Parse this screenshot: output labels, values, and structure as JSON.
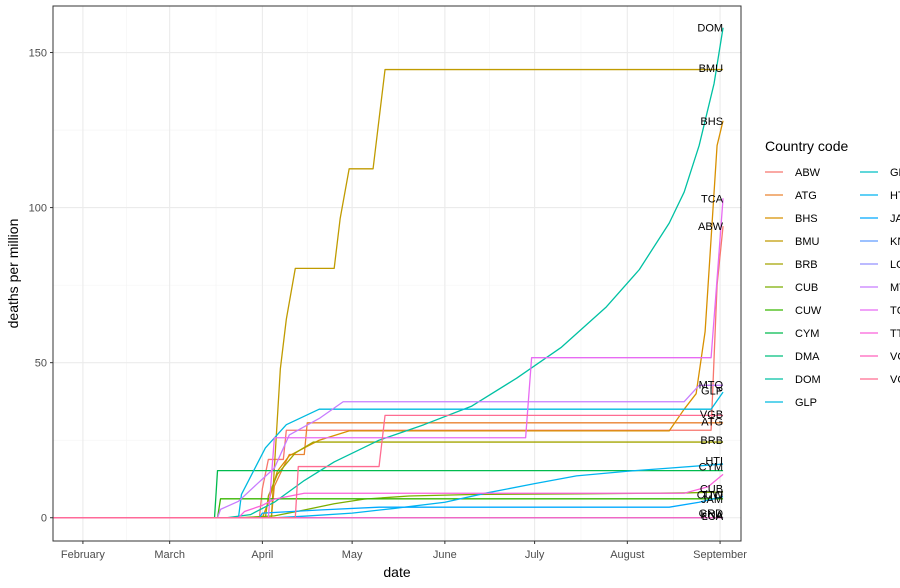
{
  "chart_data": {
    "type": "line",
    "title": "",
    "xlabel": "date",
    "ylabel": "deaths per million",
    "x_ticks": [
      {
        "label": "February",
        "date": "2020-02-01"
      },
      {
        "label": "March",
        "date": "2020-03-01"
      },
      {
        "label": "April",
        "date": "2020-04-01"
      },
      {
        "label": "May",
        "date": "2020-05-01"
      },
      {
        "label": "June",
        "date": "2020-06-01"
      },
      {
        "label": "July",
        "date": "2020-07-01"
      },
      {
        "label": "August",
        "date": "2020-08-01"
      },
      {
        "label": "September",
        "date": "2020-09-01"
      }
    ],
    "xlim": [
      "2020-01-22",
      "2020-09-08"
    ],
    "y_ticks": [
      0,
      50,
      100,
      150
    ],
    "ylim": [
      -7.5,
      165
    ],
    "grid": true,
    "legend": {
      "title": "Country code",
      "position": "right",
      "columns": 2
    },
    "series": [
      {
        "name": "ABW",
        "color": "#F8766D",
        "label": "ABW",
        "points": [
          [
            "2020-01-22",
            0
          ],
          [
            "2020-03-31",
            0
          ],
          [
            "2020-04-01",
            9.4
          ],
          [
            "2020-04-03",
            18.8
          ],
          [
            "2020-04-08",
            18.8
          ],
          [
            "2020-04-09",
            28.2
          ],
          [
            "2020-08-29",
            28.2
          ],
          [
            "2020-08-31",
            75
          ],
          [
            "2020-09-02",
            94
          ]
        ]
      },
      {
        "name": "ATG",
        "color": "#EA8331",
        "label": "ATG",
        "points": [
          [
            "2020-01-22",
            0
          ],
          [
            "2020-04-04",
            0
          ],
          [
            "2020-04-05",
            10.2
          ],
          [
            "2020-04-10",
            20.4
          ],
          [
            "2020-04-15",
            20.4
          ],
          [
            "2020-04-16",
            30.6
          ],
          [
            "2020-09-02",
            30.6
          ]
        ]
      },
      {
        "name": "BHS",
        "color": "#D89000",
        "label": "BHS",
        "points": [
          [
            "2020-01-22",
            0
          ],
          [
            "2020-04-01",
            0
          ],
          [
            "2020-04-03",
            5
          ],
          [
            "2020-04-06",
            15
          ],
          [
            "2020-04-10",
            20
          ],
          [
            "2020-04-20",
            25
          ],
          [
            "2020-04-30",
            28
          ],
          [
            "2020-08-15",
            28
          ],
          [
            "2020-08-20",
            35
          ],
          [
            "2020-08-24",
            40
          ],
          [
            "2020-08-27",
            60
          ],
          [
            "2020-08-29",
            90
          ],
          [
            "2020-08-31",
            120
          ],
          [
            "2020-09-02",
            128
          ]
        ]
      },
      {
        "name": "BMU",
        "color": "#C09B00",
        "label": "BMU",
        "points": [
          [
            "2020-01-22",
            0
          ],
          [
            "2020-04-04",
            0
          ],
          [
            "2020-04-05",
            16
          ],
          [
            "2020-04-06",
            32
          ],
          [
            "2020-04-07",
            48
          ],
          [
            "2020-04-09",
            64
          ],
          [
            "2020-04-12",
            80.4
          ],
          [
            "2020-04-25",
            80.4
          ],
          [
            "2020-04-27",
            96.5
          ],
          [
            "2020-04-30",
            112.5
          ],
          [
            "2020-05-08",
            112.5
          ],
          [
            "2020-05-10",
            128.5
          ],
          [
            "2020-05-12",
            144.5
          ],
          [
            "2020-09-02",
            144.5
          ]
        ]
      },
      {
        "name": "BRB",
        "color": "#A3A500",
        "label": "BRB",
        "points": [
          [
            "2020-01-22",
            0
          ],
          [
            "2020-04-02",
            0
          ],
          [
            "2020-04-03",
            7
          ],
          [
            "2020-04-06",
            14
          ],
          [
            "2020-04-12",
            20.9
          ],
          [
            "2020-04-18",
            24.4
          ],
          [
            "2020-09-02",
            24.4
          ]
        ]
      },
      {
        "name": "CUB",
        "color": "#7CAE00",
        "label": "CUB",
        "points": [
          [
            "2020-01-22",
            0
          ],
          [
            "2020-03-24",
            0
          ],
          [
            "2020-04-05",
            0.6
          ],
          [
            "2020-04-15",
            2.5
          ],
          [
            "2020-04-25",
            4.5
          ],
          [
            "2020-05-05",
            6
          ],
          [
            "2020-05-20",
            7
          ],
          [
            "2020-06-10",
            7.5
          ],
          [
            "2020-07-15",
            7.7
          ],
          [
            "2020-08-20",
            8
          ],
          [
            "2020-09-02",
            8.3
          ]
        ]
      },
      {
        "name": "CUW",
        "color": "#39B600",
        "label": "CUW",
        "points": [
          [
            "2020-01-22",
            0
          ],
          [
            "2020-03-17",
            0
          ],
          [
            "2020-03-18",
            6.1
          ],
          [
            "2020-09-02",
            6.1
          ]
        ]
      },
      {
        "name": "CYM",
        "color": "#00BB4E",
        "label": "CYM",
        "points": [
          [
            "2020-01-22",
            0
          ],
          [
            "2020-03-16",
            0
          ],
          [
            "2020-03-17",
            15.2
          ],
          [
            "2020-09-02",
            15.2
          ]
        ]
      },
      {
        "name": "DMA",
        "color": "#00BF7D",
        "label": "",
        "points": [
          [
            "2020-01-22",
            0
          ],
          [
            "2020-09-02",
            0
          ]
        ]
      },
      {
        "name": "DOM",
        "color": "#00C1A3",
        "label": "DOM",
        "points": [
          [
            "2020-01-22",
            0
          ],
          [
            "2020-03-20",
            0
          ],
          [
            "2020-03-28",
            1
          ],
          [
            "2020-04-05",
            5
          ],
          [
            "2020-04-15",
            12
          ],
          [
            "2020-04-25",
            18
          ],
          [
            "2020-05-10",
            25
          ],
          [
            "2020-05-25",
            30
          ],
          [
            "2020-06-10",
            36
          ],
          [
            "2020-06-25",
            45
          ],
          [
            "2020-07-10",
            55
          ],
          [
            "2020-07-25",
            68
          ],
          [
            "2020-08-05",
            80
          ],
          [
            "2020-08-15",
            95
          ],
          [
            "2020-08-20",
            105
          ],
          [
            "2020-08-25",
            120
          ],
          [
            "2020-08-30",
            140
          ],
          [
            "2020-09-02",
            158
          ]
        ]
      },
      {
        "name": "GLP",
        "color": "#00BAE0",
        "label": "GLP",
        "points": [
          [
            "2020-01-22",
            0
          ],
          [
            "2020-03-24",
            0
          ],
          [
            "2020-03-25",
            7.5
          ],
          [
            "2020-03-29",
            15
          ],
          [
            "2020-04-02",
            22.5
          ],
          [
            "2020-04-09",
            30
          ],
          [
            "2020-04-20",
            35
          ],
          [
            "2020-08-29",
            35
          ],
          [
            "2020-09-02",
            40.5
          ]
        ]
      },
      {
        "name": "GRD",
        "color": "#00BFC4",
        "label": "GRD",
        "points": [
          [
            "2020-01-22",
            0
          ],
          [
            "2020-09-02",
            0
          ]
        ]
      },
      {
        "name": "HTI",
        "color": "#00B4F0",
        "label": "HTI",
        "points": [
          [
            "2020-01-22",
            0
          ],
          [
            "2020-04-05",
            0
          ],
          [
            "2020-04-15",
            0.5
          ],
          [
            "2020-05-01",
            1.5
          ],
          [
            "2020-05-15",
            3
          ],
          [
            "2020-06-01",
            5
          ],
          [
            "2020-06-15",
            8
          ],
          [
            "2020-07-01",
            11
          ],
          [
            "2020-07-15",
            13.5
          ],
          [
            "2020-08-01",
            15
          ],
          [
            "2020-08-15",
            16
          ],
          [
            "2020-09-02",
            17.3
          ]
        ]
      },
      {
        "name": "JAM",
        "color": "#00A9FF",
        "label": "JAM",
        "points": [
          [
            "2020-01-22",
            0
          ],
          [
            "2020-03-31",
            0
          ],
          [
            "2020-04-01",
            1.5
          ],
          [
            "2020-04-20",
            2.5
          ],
          [
            "2020-05-10",
            3.4
          ],
          [
            "2020-08-15",
            3.4
          ],
          [
            "2020-08-25",
            5
          ],
          [
            "2020-09-02",
            6.8
          ]
        ]
      },
      {
        "name": "KNA",
        "color": "#619CFF",
        "label": "KNA",
        "points": [
          [
            "2020-01-22",
            0
          ],
          [
            "2020-09-02",
            0
          ]
        ]
      },
      {
        "name": "LCA",
        "color": "#9590FF",
        "label": "LCA",
        "points": [
          [
            "2020-01-22",
            0
          ],
          [
            "2020-09-02",
            0
          ]
        ]
      },
      {
        "name": "MTQ",
        "color": "#C77CFF",
        "label": "MTQ",
        "points": [
          [
            "2020-01-22",
            0
          ],
          [
            "2020-03-17",
            0
          ],
          [
            "2020-03-18",
            2.7
          ],
          [
            "2020-03-24",
            5.3
          ],
          [
            "2020-03-30",
            10.7
          ],
          [
            "2020-04-05",
            16
          ],
          [
            "2020-04-10",
            26.7
          ],
          [
            "2020-04-20",
            32
          ],
          [
            "2020-04-28",
            37.4
          ],
          [
            "2020-08-20",
            37.4
          ],
          [
            "2020-08-25",
            42.7
          ],
          [
            "2020-09-02",
            42.7
          ]
        ]
      },
      {
        "name": "TCA",
        "color": "#E76BF3",
        "label": "TCA",
        "points": [
          [
            "2020-01-22",
            0
          ],
          [
            "2020-04-03",
            0
          ],
          [
            "2020-04-05",
            25.8
          ],
          [
            "2020-06-28",
            25.8
          ],
          [
            "2020-06-30",
            51.6
          ],
          [
            "2020-08-29",
            51.6
          ],
          [
            "2020-08-31",
            77
          ],
          [
            "2020-09-02",
            103
          ]
        ]
      },
      {
        "name": "TTO",
        "color": "#FA62DB",
        "label": "TTO",
        "points": [
          [
            "2020-01-22",
            0
          ],
          [
            "2020-03-24",
            0
          ],
          [
            "2020-03-26",
            2
          ],
          [
            "2020-04-01",
            4
          ],
          [
            "2020-04-05",
            6
          ],
          [
            "2020-04-15",
            7.9
          ],
          [
            "2020-08-20",
            7.9
          ],
          [
            "2020-08-28",
            10
          ],
          [
            "2020-09-02",
            14
          ]
        ]
      },
      {
        "name": "VCT",
        "color": "#FF62BC",
        "label": "",
        "points": [
          [
            "2020-01-22",
            0
          ],
          [
            "2020-09-02",
            0
          ]
        ]
      },
      {
        "name": "VGB",
        "color": "#FF6C91",
        "label": "VGB",
        "points": [
          [
            "2020-01-22",
            0
          ],
          [
            "2020-04-12",
            0
          ],
          [
            "2020-04-13",
            16.5
          ],
          [
            "2020-05-10",
            16.5
          ],
          [
            "2020-05-12",
            33
          ],
          [
            "2020-09-02",
            33
          ]
        ]
      }
    ],
    "end_label_positions": {
      "DOM": 158,
      "BMU": 145,
      "BHS": 128,
      "TCA": 103,
      "ABW": 94,
      "MTQ": 43,
      "GLP": 41,
      "VGB": 33.5,
      "ATG": 31,
      "BRB": 25,
      "HTI": 18.5,
      "CYM": 16.5,
      "CUB": 9.5,
      "CUW": 7.5,
      "TTO": 7.5,
      "JAM": 6,
      "GRD": 1.5,
      "KNA": 1,
      "LCA": 0.5,
      "DMA": 0,
      "VCT": 0
    }
  }
}
